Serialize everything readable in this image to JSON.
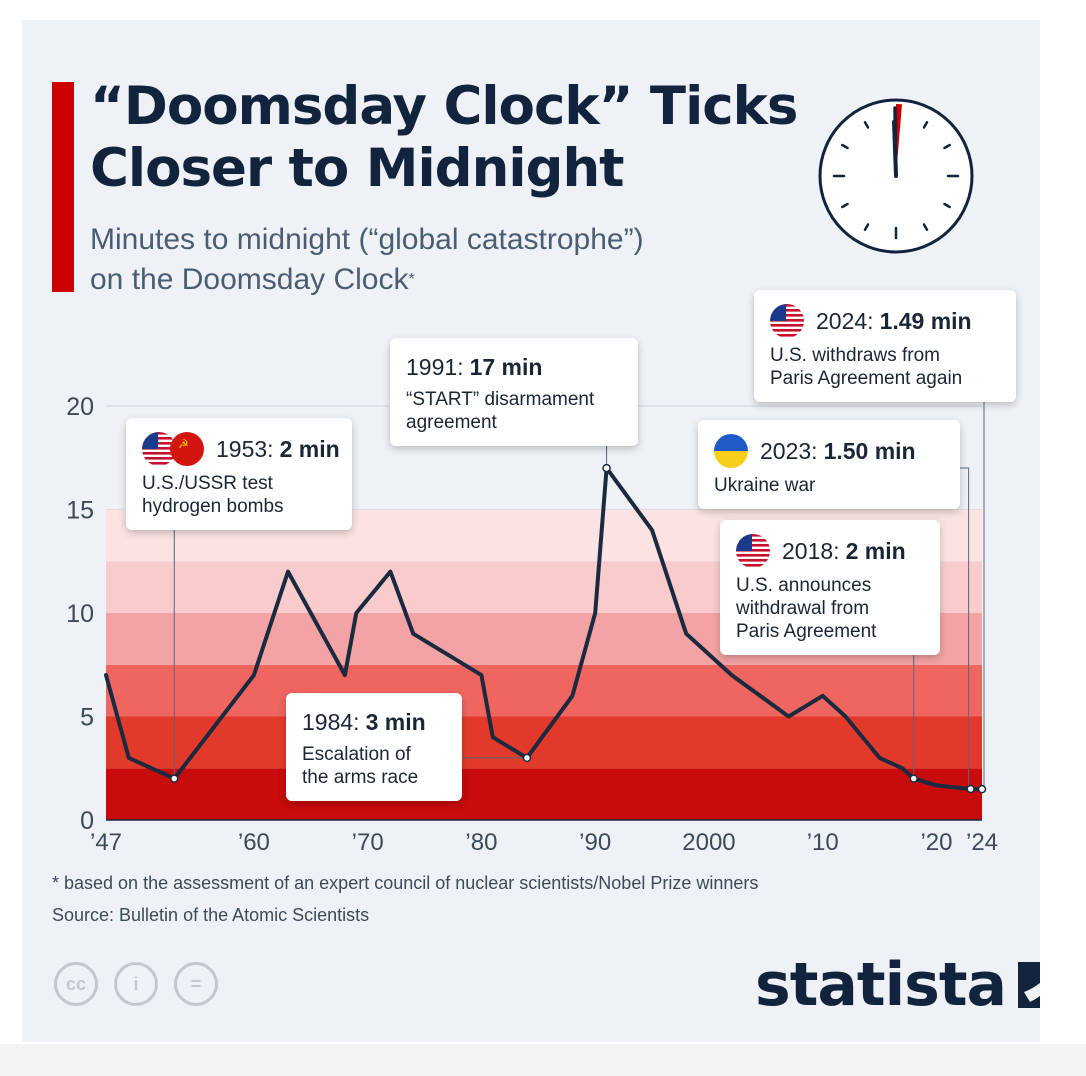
{
  "header": {
    "title_lines": [
      "“Doomsday Clock” Ticks",
      "Closer to Midnight"
    ],
    "subtitle_lines": [
      "Minutes to midnight (“global catastrophe”)",
      "on the Doomsday Clock"
    ],
    "subtitle_marker": "*"
  },
  "colors": {
    "accent": "#cc0000",
    "line": "#1c2a40",
    "bands": [
      "#c80b0b",
      "#e23a2a",
      "#ef6560",
      "#f3a3a3",
      "#f8cccc",
      "#fbe3e3"
    ]
  },
  "chart_data": {
    "type": "line",
    "title": "",
    "xlabel": "",
    "ylabel": "",
    "ylim": [
      0,
      20
    ],
    "xlim": [
      1947,
      2024
    ],
    "y_ticks": [
      0,
      5,
      10,
      15,
      20
    ],
    "x_tick_labels": [
      {
        "year": 1947,
        "label": "’47"
      },
      {
        "year": 1960,
        "label": "’60"
      },
      {
        "year": 1970,
        "label": "’70"
      },
      {
        "year": 1980,
        "label": "’80"
      },
      {
        "year": 1990,
        "label": "’90"
      },
      {
        "year": 2000,
        "label": "2000"
      },
      {
        "year": 2010,
        "label": "’10"
      },
      {
        "year": 2020,
        "label": "’20"
      },
      {
        "year": 2024,
        "label": "’24"
      }
    ],
    "series": [
      {
        "x": [
          1947,
          1949,
          1953,
          1960,
          1963,
          1968,
          1969,
          1972,
          1974,
          1980,
          1981,
          1984,
          1988,
          1990,
          1991,
          1995,
          1998,
          2002,
          2007,
          2010,
          2012,
          2015,
          2017,
          2018,
          2020,
          2023,
          2024
        ],
        "y": [
          7,
          3,
          2,
          7,
          12,
          7,
          10,
          12,
          9,
          7,
          4,
          3,
          6,
          10,
          17,
          14,
          9,
          7,
          5,
          6,
          5,
          3,
          2.5,
          2,
          1.67,
          1.5,
          1.49
        ]
      }
    ],
    "bands": [
      {
        "from": 0,
        "to": 2.5
      },
      {
        "from": 2.5,
        "to": 5
      },
      {
        "from": 5,
        "to": 7.5
      },
      {
        "from": 7.5,
        "to": 10
      },
      {
        "from": 10,
        "to": 12.5
      },
      {
        "from": 12.5,
        "to": 15
      }
    ],
    "annotations": [
      {
        "year": 1953,
        "head_year": "1953:",
        "head_value": "2 min",
        "lines": [
          "U.S./USSR test",
          "hydrogen bombs"
        ],
        "flag": "us-ussr"
      },
      {
        "year": 1984,
        "head_year": "1984:",
        "head_value": "3 min",
        "lines": [
          "Escalation of",
          "the arms race"
        ],
        "flag": ""
      },
      {
        "year": 1991,
        "head_year": "1991:",
        "head_value": "17 min",
        "lines": [
          "“START” disarmament",
          "agreement"
        ],
        "flag": ""
      },
      {
        "year": 2018,
        "head_year": "2018:",
        "head_value": "2 min",
        "lines": [
          "U.S. announces",
          "withdrawal from",
          "Paris Agreement"
        ],
        "flag": "us"
      },
      {
        "year": 2023,
        "head_year": "2023:",
        "head_value": "1.50 min",
        "lines": [
          "Ukraine war"
        ],
        "flag": "ukraine"
      },
      {
        "year": 2024,
        "head_year": "2024:",
        "head_value": "1.49 min",
        "lines": [
          "U.S. withdraws from",
          "Paris Agreement again"
        ],
        "flag": "us"
      }
    ]
  },
  "footer": {
    "footnote": "* based on the assessment of an expert council of nuclear scientists/Nobel Prize winners",
    "source": "Source: Bulletin of the Atomic Scientists",
    "license_icons": [
      "cc",
      "i",
      "="
    ],
    "brand": "statista"
  }
}
